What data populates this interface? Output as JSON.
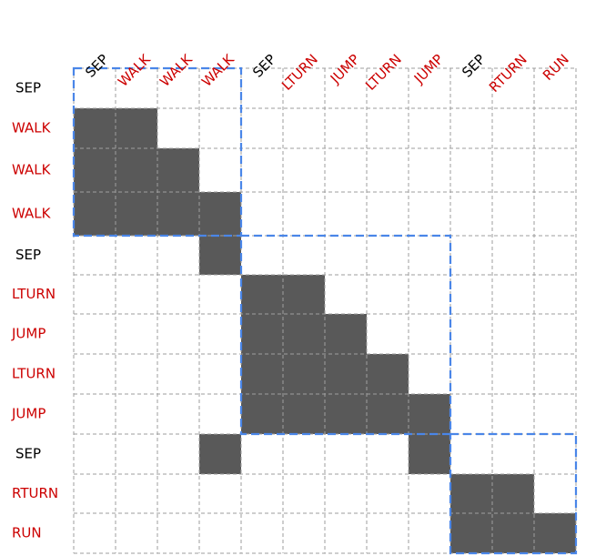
{
  "colors": {
    "sep": "#000000",
    "token": "#cc0000",
    "filled": "#595959",
    "grid": "#9e9e9e",
    "block": "#4a86e8"
  },
  "column_labels": [
    "SEP",
    "WALK",
    "WALK",
    "WALK",
    "SEP",
    "LTURN",
    "JUMP",
    "LTURN",
    "JUMP",
    "SEP",
    "RTURN",
    "RUN"
  ],
  "row_labels": [
    "SEP",
    "WALK",
    "WALK",
    "WALK",
    "SEP",
    "LTURN",
    "JUMP",
    "LTURN",
    "JUMP",
    "SEP",
    "RTURN",
    "RUN"
  ],
  "label_is_separator": [
    true,
    false,
    false,
    false,
    true,
    false,
    false,
    false,
    false,
    true,
    false,
    false
  ],
  "matrix": [
    [
      0,
      0,
      0,
      0,
      0,
      0,
      0,
      0,
      0,
      0,
      0,
      0
    ],
    [
      1,
      1,
      0,
      0,
      0,
      0,
      0,
      0,
      0,
      0,
      0,
      0
    ],
    [
      1,
      1,
      1,
      0,
      0,
      0,
      0,
      0,
      0,
      0,
      0,
      0
    ],
    [
      1,
      1,
      1,
      1,
      0,
      0,
      0,
      0,
      0,
      0,
      0,
      0
    ],
    [
      0,
      0,
      0,
      1,
      0,
      0,
      0,
      0,
      0,
      0,
      0,
      0
    ],
    [
      0,
      0,
      0,
      0,
      1,
      1,
      0,
      0,
      0,
      0,
      0,
      0
    ],
    [
      0,
      0,
      0,
      0,
      1,
      1,
      1,
      0,
      0,
      0,
      0,
      0
    ],
    [
      0,
      0,
      0,
      0,
      1,
      1,
      1,
      1,
      0,
      0,
      0,
      0
    ],
    [
      0,
      0,
      0,
      0,
      1,
      1,
      1,
      1,
      1,
      0,
      0,
      0
    ],
    [
      0,
      0,
      0,
      1,
      0,
      0,
      0,
      0,
      1,
      0,
      0,
      0
    ],
    [
      0,
      0,
      0,
      0,
      0,
      0,
      0,
      0,
      0,
      1,
      1,
      0
    ],
    [
      0,
      0,
      0,
      0,
      0,
      0,
      0,
      0,
      0,
      1,
      1,
      1
    ]
  ],
  "blocks": [
    {
      "start": 0,
      "end": 3
    },
    {
      "start": 4,
      "end": 8
    },
    {
      "start": 9,
      "end": 11
    }
  ]
}
